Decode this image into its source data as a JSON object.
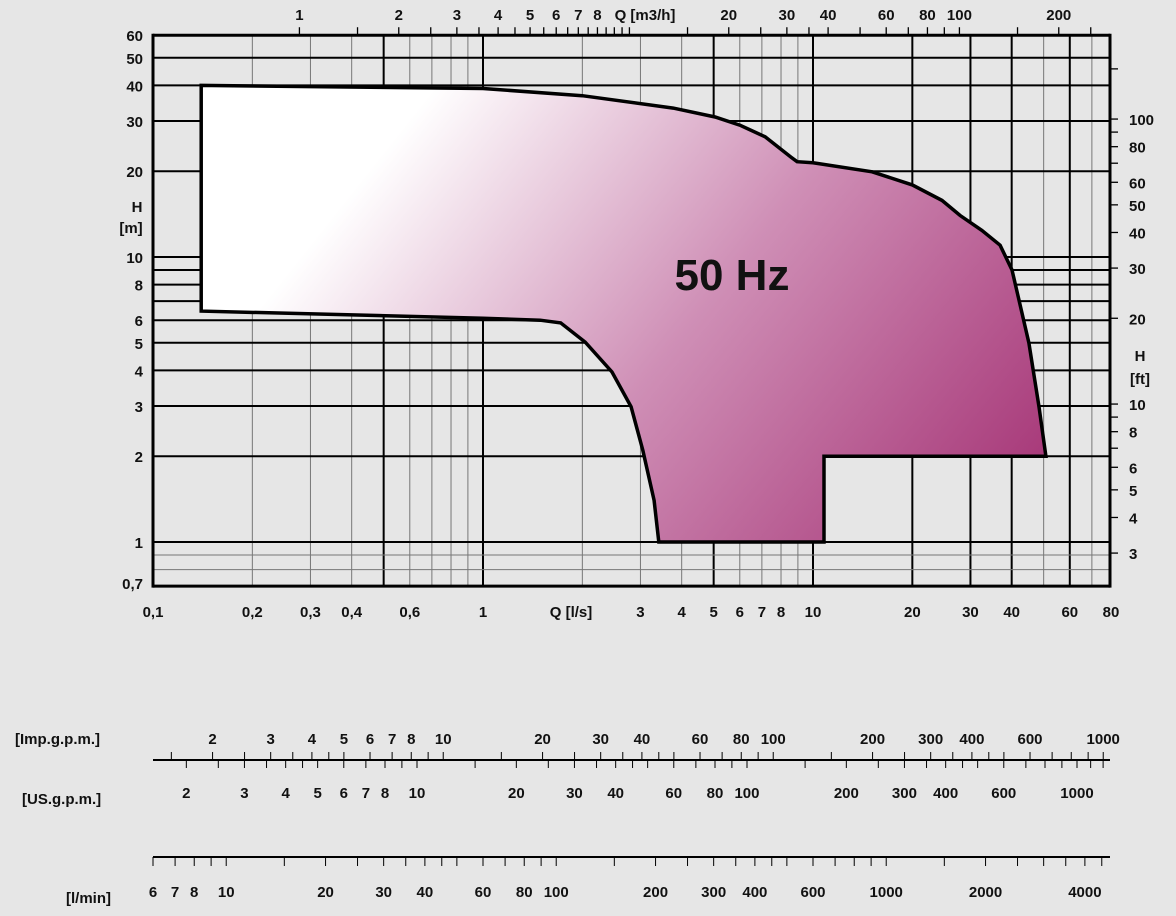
{
  "chart_data": {
    "type": "area",
    "annotation": "50 Hz",
    "background_color": "#e6e6e6",
    "fill_gradient": [
      "#ffffff",
      "#a83a7a"
    ],
    "grid": true,
    "x_axis": {
      "label": "Q  [l/s]",
      "scale": "log",
      "range": [
        0.1,
        80
      ],
      "tick_labels": [
        {
          "value": 0.1,
          "text": "0,1"
        },
        {
          "value": 0.2,
          "text": "0,2"
        },
        {
          "value": 0.3,
          "text": "0,3"
        },
        {
          "value": 0.4,
          "text": "0,4"
        },
        {
          "value": 0.6,
          "text": "0,6"
        },
        {
          "value": 1,
          "text": "1"
        },
        {
          "value": 3,
          "text": "3"
        },
        {
          "value": 4,
          "text": "4"
        },
        {
          "value": 5,
          "text": "5"
        },
        {
          "value": 6,
          "text": "6"
        },
        {
          "value": 7,
          "text": "7"
        },
        {
          "value": 8,
          "text": "8"
        },
        {
          "value": 10,
          "text": "10"
        },
        {
          "value": 20,
          "text": "20"
        },
        {
          "value": 30,
          "text": "30"
        },
        {
          "value": 40,
          "text": "40"
        },
        {
          "value": 60,
          "text": "60"
        },
        {
          "value": 80,
          "text": "80"
        }
      ]
    },
    "y_axis": {
      "label": "H",
      "unit": "[m]",
      "scale": "log",
      "range": [
        0.7,
        60
      ],
      "tick_labels": [
        {
          "value": 60,
          "text": "60"
        },
        {
          "value": 50,
          "text": "50"
        },
        {
          "value": 40,
          "text": "40"
        },
        {
          "value": 30,
          "text": "30"
        },
        {
          "value": 20,
          "text": "20"
        },
        {
          "value": 10,
          "text": "10"
        },
        {
          "value": 8,
          "text": "8"
        },
        {
          "value": 6,
          "text": "6"
        },
        {
          "value": 5,
          "text": "5"
        },
        {
          "value": 4,
          "text": "4"
        },
        {
          "value": 3,
          "text": "3"
        },
        {
          "value": 2,
          "text": "2"
        },
        {
          "value": 1,
          "text": "1"
        },
        {
          "value": 0.7,
          "text": "0,7"
        }
      ]
    },
    "top_axis": {
      "label": "Q [m3/h]",
      "scale": "log",
      "tick_labels": [
        {
          "value": 1,
          "text": "1"
        },
        {
          "value": 2,
          "text": "2"
        },
        {
          "value": 3,
          "text": "3"
        },
        {
          "value": 4,
          "text": "4"
        },
        {
          "value": 5,
          "text": "5"
        },
        {
          "value": 6,
          "text": "6"
        },
        {
          "value": 7,
          "text": "7"
        },
        {
          "value": 8,
          "text": "8"
        },
        {
          "value": 20,
          "text": "20"
        },
        {
          "value": 30,
          "text": "30"
        },
        {
          "value": 40,
          "text": "40"
        },
        {
          "value": 60,
          "text": "60"
        },
        {
          "value": 80,
          "text": "80"
        },
        {
          "value": 100,
          "text": "100"
        },
        {
          "value": 200,
          "text": "200"
        }
      ]
    },
    "right_axis": {
      "label": "H",
      "unit": "[ft]",
      "scale": "log",
      "tick_labels": [
        {
          "value": 100,
          "text": "100"
        },
        {
          "value": 80,
          "text": "80"
        },
        {
          "value": 60,
          "text": "60"
        },
        {
          "value": 50,
          "text": "50"
        },
        {
          "value": 40,
          "text": "40"
        },
        {
          "value": 30,
          "text": "30"
        },
        {
          "value": 20,
          "text": "20"
        },
        {
          "value": 10,
          "text": "10"
        },
        {
          "value": 8,
          "text": "8"
        },
        {
          "value": 6,
          "text": "6"
        },
        {
          "value": 5,
          "text": "5"
        },
        {
          "value": 4,
          "text": "4"
        },
        {
          "value": 3,
          "text": "3"
        }
      ]
    },
    "secondary_scales": [
      {
        "label": "[Imp.g.p.m.]",
        "labels": [
          "2",
          "3",
          "4",
          "5",
          "6",
          "7",
          "8",
          "10",
          "20",
          "30",
          "40",
          "60",
          "80",
          "100",
          "200",
          "300",
          "400",
          "600",
          "1000"
        ]
      },
      {
        "label": "[US.g.p.m.]",
        "labels": [
          "2",
          "3",
          "4",
          "5",
          "6",
          "7",
          "8",
          "10",
          "20",
          "30",
          "40",
          "60",
          "80",
          "100",
          "200",
          "300",
          "400",
          "600",
          "1000"
        ]
      },
      {
        "label": "[l/min]",
        "labels": [
          "6",
          "7",
          "8",
          "10",
          "20",
          "30",
          "40",
          "60",
          "80",
          "100",
          "200",
          "300",
          "400",
          "600",
          "1000",
          "2000",
          "4000"
        ]
      }
    ],
    "series": [
      {
        "values": [
          [
            0.14,
            40
          ],
          [
            1.0,
            39
          ],
          [
            2.0,
            36.8
          ],
          [
            3.77,
            33.3
          ],
          [
            5.05,
            31.0
          ],
          [
            6.01,
            29.0
          ],
          [
            7.16,
            26.4
          ],
          [
            8.58,
            22.4
          ],
          [
            8.95,
            21.6
          ],
          [
            10.0,
            21.4
          ],
          [
            15.1,
            19.9
          ],
          [
            20.0,
            17.9
          ],
          [
            24.6,
            15.8
          ],
          [
            27.9,
            14.0
          ],
          [
            32.5,
            12.4
          ],
          [
            36.9,
            11.0
          ],
          [
            40.1,
            9.0
          ],
          [
            42.1,
            7.06
          ],
          [
            45.1,
            4.99
          ],
          [
            48.4,
            2.98
          ],
          [
            50.8,
            2.0
          ],
          [
            10.8,
            2.0
          ],
          [
            10.8,
            1.0
          ],
          [
            3.41,
            1.0
          ],
          [
            3.3,
            1.4
          ],
          [
            3.05,
            2.1
          ],
          [
            2.81,
            2.98
          ],
          [
            2.46,
            3.95
          ],
          [
            2.04,
            5.03
          ],
          [
            1.72,
            5.87
          ],
          [
            1.49,
            6.0
          ],
          [
            1.0,
            6.1
          ],
          [
            0.14,
            6.46
          ]
        ]
      }
    ]
  }
}
